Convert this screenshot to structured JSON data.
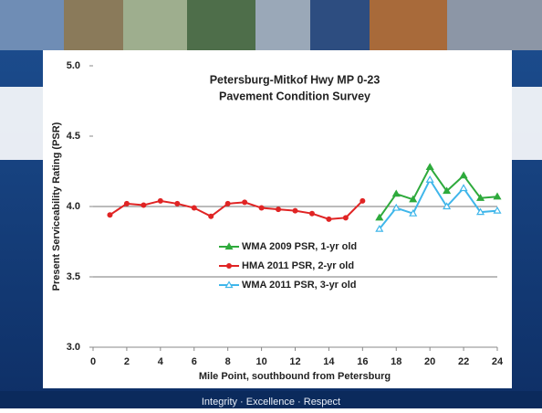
{
  "chart_data": {
    "type": "line",
    "title": [
      "Petersburg-Mitkof Hwy MP 0-23",
      "Pavement Condition Survey"
    ],
    "x_label": "Mile Point, southbound from Petersburg",
    "y_label": "Present Serviceability Rating (PSR)",
    "xlim": [
      0,
      24
    ],
    "xticks": [
      0,
      2,
      4,
      6,
      8,
      10,
      12,
      14,
      16,
      18,
      20,
      22,
      24
    ],
    "ylim": [
      3,
      5
    ],
    "yticks": [
      {
        "value": 3,
        "label": "3.0"
      },
      {
        "value": 3.5,
        "label": "3.5"
      },
      {
        "value": 4,
        "label": "4.0"
      },
      {
        "value": 4.5,
        "label": "4.5"
      },
      {
        "value": 5,
        "label": "5.0"
      }
    ],
    "reference_lines": [
      4,
      3.5
    ],
    "series": [
      {
        "name": "WMA 2009 PSR, 1-yr old",
        "color": "#2eaa3c",
        "marker": "triangle",
        "x": [
          17,
          18,
          19,
          20,
          21,
          22,
          23,
          24
        ],
        "values": [
          3.92,
          4.09,
          4.05,
          4.28,
          4.11,
          4.22,
          4.06,
          4.07
        ]
      },
      {
        "name": "HMA 2011 PSR, 2-yr old",
        "color": "#e02424",
        "marker": "circle",
        "x": [
          1,
          2,
          3,
          4,
          5,
          6,
          7,
          8,
          9,
          10,
          11,
          12,
          13,
          14,
          15,
          16
        ],
        "values": [
          3.94,
          4.02,
          4.01,
          4.04,
          4.02,
          3.99,
          3.93,
          4.02,
          4.03,
          3.99,
          3.98,
          3.97,
          3.95,
          3.91,
          3.92,
          4.04
        ]
      },
      {
        "name": "WMA 2011 PSR, 3-yr old",
        "color": "#3fb6ea",
        "marker": "triangle-open",
        "x": [
          17,
          18,
          19,
          20,
          21,
          22,
          23,
          24
        ],
        "values": [
          3.84,
          3.99,
          3.95,
          4.19,
          4.0,
          4.13,
          3.96,
          3.97
        ]
      }
    ]
  },
  "footer": "Integrity · Excellence · Respect"
}
